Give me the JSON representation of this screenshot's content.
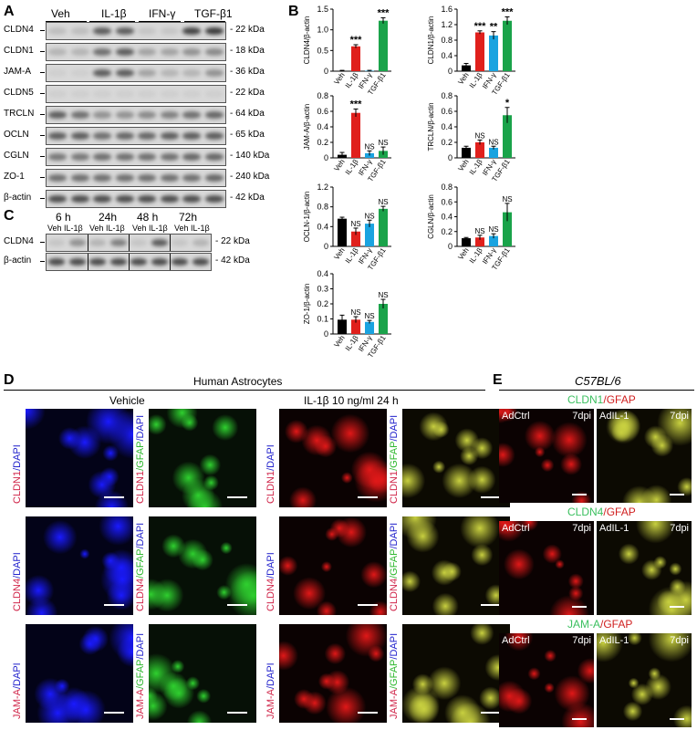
{
  "panels": {
    "A": "A",
    "B": "B",
    "C": "C",
    "D": "D",
    "E": "E"
  },
  "panelA": {
    "conditions": [
      "Veh",
      "IL-1β",
      "IFN-γ",
      "TGF-β1"
    ],
    "rows": [
      {
        "name": "CLDN4",
        "kda": "22 kDa",
        "bands": [
          0.15,
          0.15,
          0.7,
          0.7,
          0.1,
          0.1,
          0.85,
          0.9
        ]
      },
      {
        "name": "CLDN1",
        "kda": "18 kDa",
        "bands": [
          0.2,
          0.2,
          0.6,
          0.7,
          0.3,
          0.3,
          0.4,
          0.45
        ]
      },
      {
        "name": "JAM-A",
        "kda": "36 kDa",
        "bands": [
          0.05,
          0.05,
          0.7,
          0.7,
          0.3,
          0.2,
          0.2,
          0.4
        ]
      },
      {
        "name": "CLDN5",
        "kda": "22 kDa",
        "bands": [
          0.05,
          0.05,
          0.05,
          0.05,
          0.05,
          0.05,
          0.05,
          0.05
        ]
      },
      {
        "name": "TRCLN",
        "kda": "64 kDa",
        "bands": [
          0.7,
          0.6,
          0.4,
          0.4,
          0.45,
          0.5,
          0.6,
          0.65
        ]
      },
      {
        "name": "OCLN",
        "kda": "65 kDa",
        "bands": [
          0.7,
          0.7,
          0.6,
          0.65,
          0.65,
          0.7,
          0.7,
          0.7
        ]
      },
      {
        "name": "CGLN",
        "kda": "140 kDa",
        "bands": [
          0.55,
          0.55,
          0.6,
          0.6,
          0.6,
          0.6,
          0.65,
          0.65
        ]
      },
      {
        "name": "ZO-1",
        "kda": "240 kDa",
        "bands": [
          0.6,
          0.6,
          0.6,
          0.6,
          0.6,
          0.6,
          0.6,
          0.65
        ]
      },
      {
        "name": "β-actin",
        "kda": "42 kDa",
        "bands": [
          0.8,
          0.8,
          0.8,
          0.8,
          0.8,
          0.8,
          0.8,
          0.8
        ]
      }
    ]
  },
  "panelC": {
    "times": [
      "6 h",
      "24h",
      "48 h",
      "72h"
    ],
    "sub": [
      "Veh IL-1β",
      "Veh IL-1β",
      "Veh IL-1β",
      "Veh IL-1β"
    ],
    "rows": [
      {
        "name": "CLDN4",
        "kda": "22 kDa",
        "bands": [
          0.1,
          0.4,
          0.2,
          0.5,
          0.1,
          0.7,
          0.1,
          0.2
        ]
      },
      {
        "name": "β-actin",
        "kda": "42 kDa",
        "bands": [
          0.8,
          0.8,
          0.8,
          0.8,
          0.8,
          0.8,
          0.8,
          0.8
        ]
      }
    ]
  },
  "chart_data": [
    {
      "type": "bar",
      "ylabel": "CLDN4/β-actin",
      "categories": [
        "Veh",
        "IL-1β",
        "IFN-γ",
        "TGF-β1"
      ],
      "values": [
        0.01,
        0.6,
        0.01,
        1.22
      ],
      "errors": [
        0.01,
        0.04,
        0.01,
        0.07
      ],
      "ylim": [
        0,
        1.5
      ],
      "yticks": [
        "0",
        "0.5",
        "1.0",
        "1.5"
      ],
      "sig": [
        "",
        "***",
        "",
        "***"
      ]
    },
    {
      "type": "bar",
      "ylabel": "CLDN1/β-actin",
      "categories": [
        "Veh",
        "IL-1β",
        "IFN-γ",
        "TGF-β1"
      ],
      "values": [
        0.15,
        1.0,
        0.92,
        1.3
      ],
      "errors": [
        0.05,
        0.04,
        0.1,
        0.1
      ],
      "ylim": [
        0,
        1.6
      ],
      "yticks": [
        "0",
        "0.4",
        "0.8",
        "1.2",
        "1.6"
      ],
      "sig": [
        "",
        "***",
        "**",
        "***"
      ]
    },
    {
      "type": "bar",
      "ylabel": "JAM-A/β-actin",
      "categories": [
        "Veh",
        "IL-1β",
        "IFN-γ",
        "TGF-β1"
      ],
      "values": [
        0.04,
        0.58,
        0.06,
        0.09
      ],
      "errors": [
        0.03,
        0.05,
        0.03,
        0.05
      ],
      "ylim": [
        0,
        0.8
      ],
      "yticks": [
        "0",
        "0.2",
        "0.4",
        "0.6",
        "0.8"
      ],
      "sig": [
        "",
        "***",
        "NS",
        "NS"
      ]
    },
    {
      "type": "bar",
      "ylabel": "TRCLN/β-actin",
      "categories": [
        "Veh",
        "IL-1β",
        "IFN-γ",
        "TGF-β1"
      ],
      "values": [
        0.13,
        0.2,
        0.13,
        0.55
      ],
      "errors": [
        0.02,
        0.03,
        0.02,
        0.1
      ],
      "ylim": [
        0,
        0.8
      ],
      "yticks": [
        "0",
        "0.2",
        "0.4",
        "0.6",
        "0.8"
      ],
      "sig": [
        "",
        "NS",
        "NS",
        "*"
      ]
    },
    {
      "type": "bar",
      "ylabel": "OCLN-1/β-actin",
      "categories": [
        "Veh",
        "IL-1β",
        "IFN-γ",
        "TGF-β1"
      ],
      "values": [
        0.56,
        0.3,
        0.46,
        0.76
      ],
      "errors": [
        0.03,
        0.07,
        0.07,
        0.05
      ],
      "ylim": [
        0,
        1.2
      ],
      "yticks": [
        "0",
        "0.4",
        "0.8",
        "1.2"
      ],
      "sig": [
        "",
        "NS",
        "NS",
        "NS"
      ]
    },
    {
      "type": "bar",
      "ylabel": "CGLN/β-actin",
      "categories": [
        "Veh",
        "IL-1β",
        "IFN-γ",
        "TGF-β1"
      ],
      "values": [
        0.11,
        0.12,
        0.14,
        0.46
      ],
      "errors": [
        0.01,
        0.03,
        0.03,
        0.12
      ],
      "ylim": [
        0,
        0.8
      ],
      "yticks": [
        "0",
        "0.2",
        "0.4",
        "0.6",
        "0.8"
      ],
      "sig": [
        "",
        "NS",
        "NS",
        "NS"
      ]
    },
    {
      "type": "bar",
      "ylabel": "ZO-1/β-actin",
      "categories": [
        "Veh",
        "IL-1β",
        "IFN-γ",
        "TGF-β1"
      ],
      "values": [
        0.095,
        0.095,
        0.08,
        0.2
      ],
      "errors": [
        0.03,
        0.02,
        0.01,
        0.03
      ],
      "ylim": [
        0,
        0.4
      ],
      "yticks": [
        "0",
        "0.1",
        "0.2",
        "0.3",
        "0.4"
      ],
      "sig": [
        "",
        "NS",
        "NS",
        "NS"
      ]
    }
  ],
  "bar_colors": [
    "#000000",
    "#e0201c",
    "#1aa3e0",
    "#1aa34a"
  ],
  "panelD": {
    "title": "Human Astrocytes",
    "vehicle": "Vehicle",
    "treated": "IL-1β 10 ng/ml 24 h",
    "rows": [
      {
        "single": [
          "CLDN1",
          "/DAPI"
        ],
        "merge": [
          "CLDN1",
          "/GFAP",
          "/DAPI"
        ]
      },
      {
        "single": [
          "CLDN4",
          "/DAPI"
        ],
        "merge": [
          "CLDN4",
          "/GFAP",
          "/DAPI"
        ]
      },
      {
        "single": [
          "JAM-A",
          "/DAPI"
        ],
        "merge": [
          "JAM-A",
          "/GFAP",
          "/DAPI"
        ]
      }
    ]
  },
  "panelE": {
    "title": "C57BL/6",
    "groups": [
      {
        "marker": "CLDN1",
        "stain": "/GFAP",
        "left": "AdCtrl",
        "right": "AdIL-1",
        "dpi": "7dpi"
      },
      {
        "marker": "CLDN4",
        "stain": "/GFAP",
        "left": "AdCtrl",
        "right": "AdIL-1",
        "dpi": "7dpi"
      },
      {
        "marker": "JAM-A",
        "stain": "/GFAP",
        "left": "AdCtrl",
        "right": "AdIL-1",
        "dpi": "7dpi"
      }
    ]
  }
}
